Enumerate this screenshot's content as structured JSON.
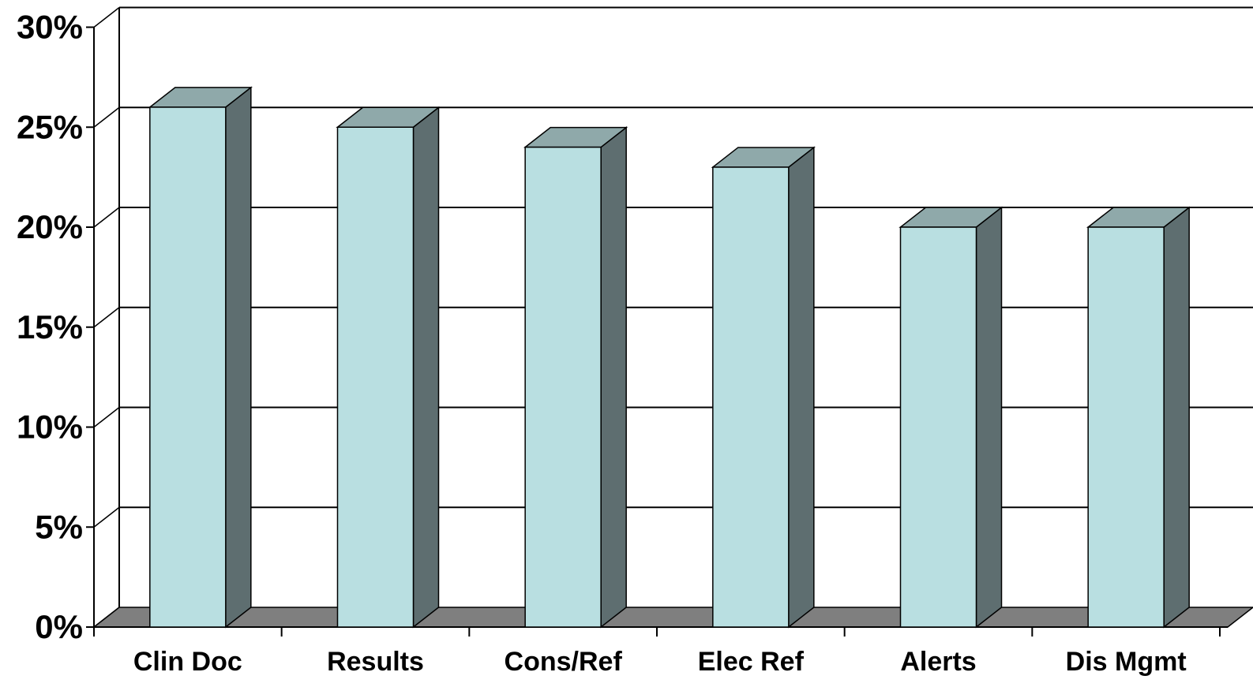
{
  "chart_data": {
    "type": "bar",
    "style": "3d",
    "categories": [
      "Clin Doc",
      "Results",
      "Cons/Ref",
      "Elec Ref",
      "Alerts",
      "Dis Mgmt"
    ],
    "values": [
      26,
      25,
      24,
      23,
      20,
      20
    ],
    "ylim": [
      0,
      30
    ],
    "yticks": [
      0,
      5,
      10,
      15,
      20,
      25,
      30
    ],
    "ytick_labels": [
      "0%",
      "5%",
      "10%",
      "15%",
      "20%",
      "25%",
      "30%"
    ],
    "grid": true,
    "legend": "none",
    "colors": {
      "bar_front": "#b9dfe1",
      "bar_top": "#8fa9aa",
      "bar_side": "#5e6e70",
      "floor": "#7f7f7f",
      "background": "#ffffff",
      "grid": "#000000"
    }
  }
}
